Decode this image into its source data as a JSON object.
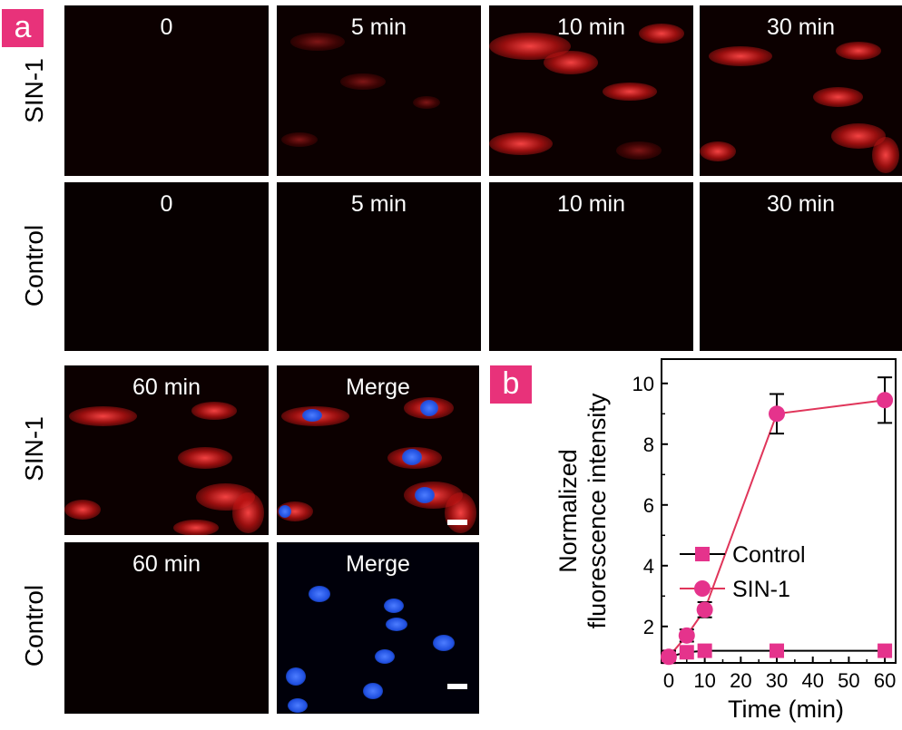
{
  "panel_a": {
    "label": "a",
    "row_labels": [
      "SIN-1",
      "Control",
      "SIN-1",
      "Control"
    ],
    "row1_titles": [
      "0",
      "5 min",
      "10 min",
      "30 min"
    ],
    "row2_titles": [
      "0",
      "5 min",
      "10 min",
      "30 min"
    ],
    "row3_titles": [
      "60 min",
      "Merge"
    ],
    "row4_titles": [
      "60 min",
      "Merge"
    ]
  },
  "panel_b": {
    "label": "b"
  },
  "chart_data": {
    "type": "line",
    "xlabel": "Time (min)",
    "ylabel": "Normalized fluorescence intensity",
    "ylabel_lines": [
      "Normalized",
      "fluorescence intensity"
    ],
    "x": [
      0,
      5,
      10,
      30,
      60
    ],
    "xlim": [
      -2,
      63
    ],
    "ylim": [
      0.8,
      10.8
    ],
    "xticks": [
      0,
      10,
      20,
      30,
      40,
      50,
      60
    ],
    "yticks": [
      2,
      4,
      6,
      8,
      10
    ],
    "grid": false,
    "legend_position": "center-right",
    "series": [
      {
        "name": "Control",
        "marker": "square",
        "color": "#e5338c",
        "line_color": "#000000",
        "values": [
          1.0,
          1.15,
          1.2,
          1.2,
          1.2
        ],
        "errors": [
          0,
          0,
          0,
          0,
          0
        ]
      },
      {
        "name": "SIN-1",
        "marker": "circle",
        "color": "#e5338c",
        "line_color": "#e0355a",
        "values": [
          1.0,
          1.7,
          2.55,
          9.0,
          9.45
        ],
        "errors": [
          0.2,
          0.2,
          0.25,
          0.65,
          0.75
        ]
      }
    ]
  }
}
